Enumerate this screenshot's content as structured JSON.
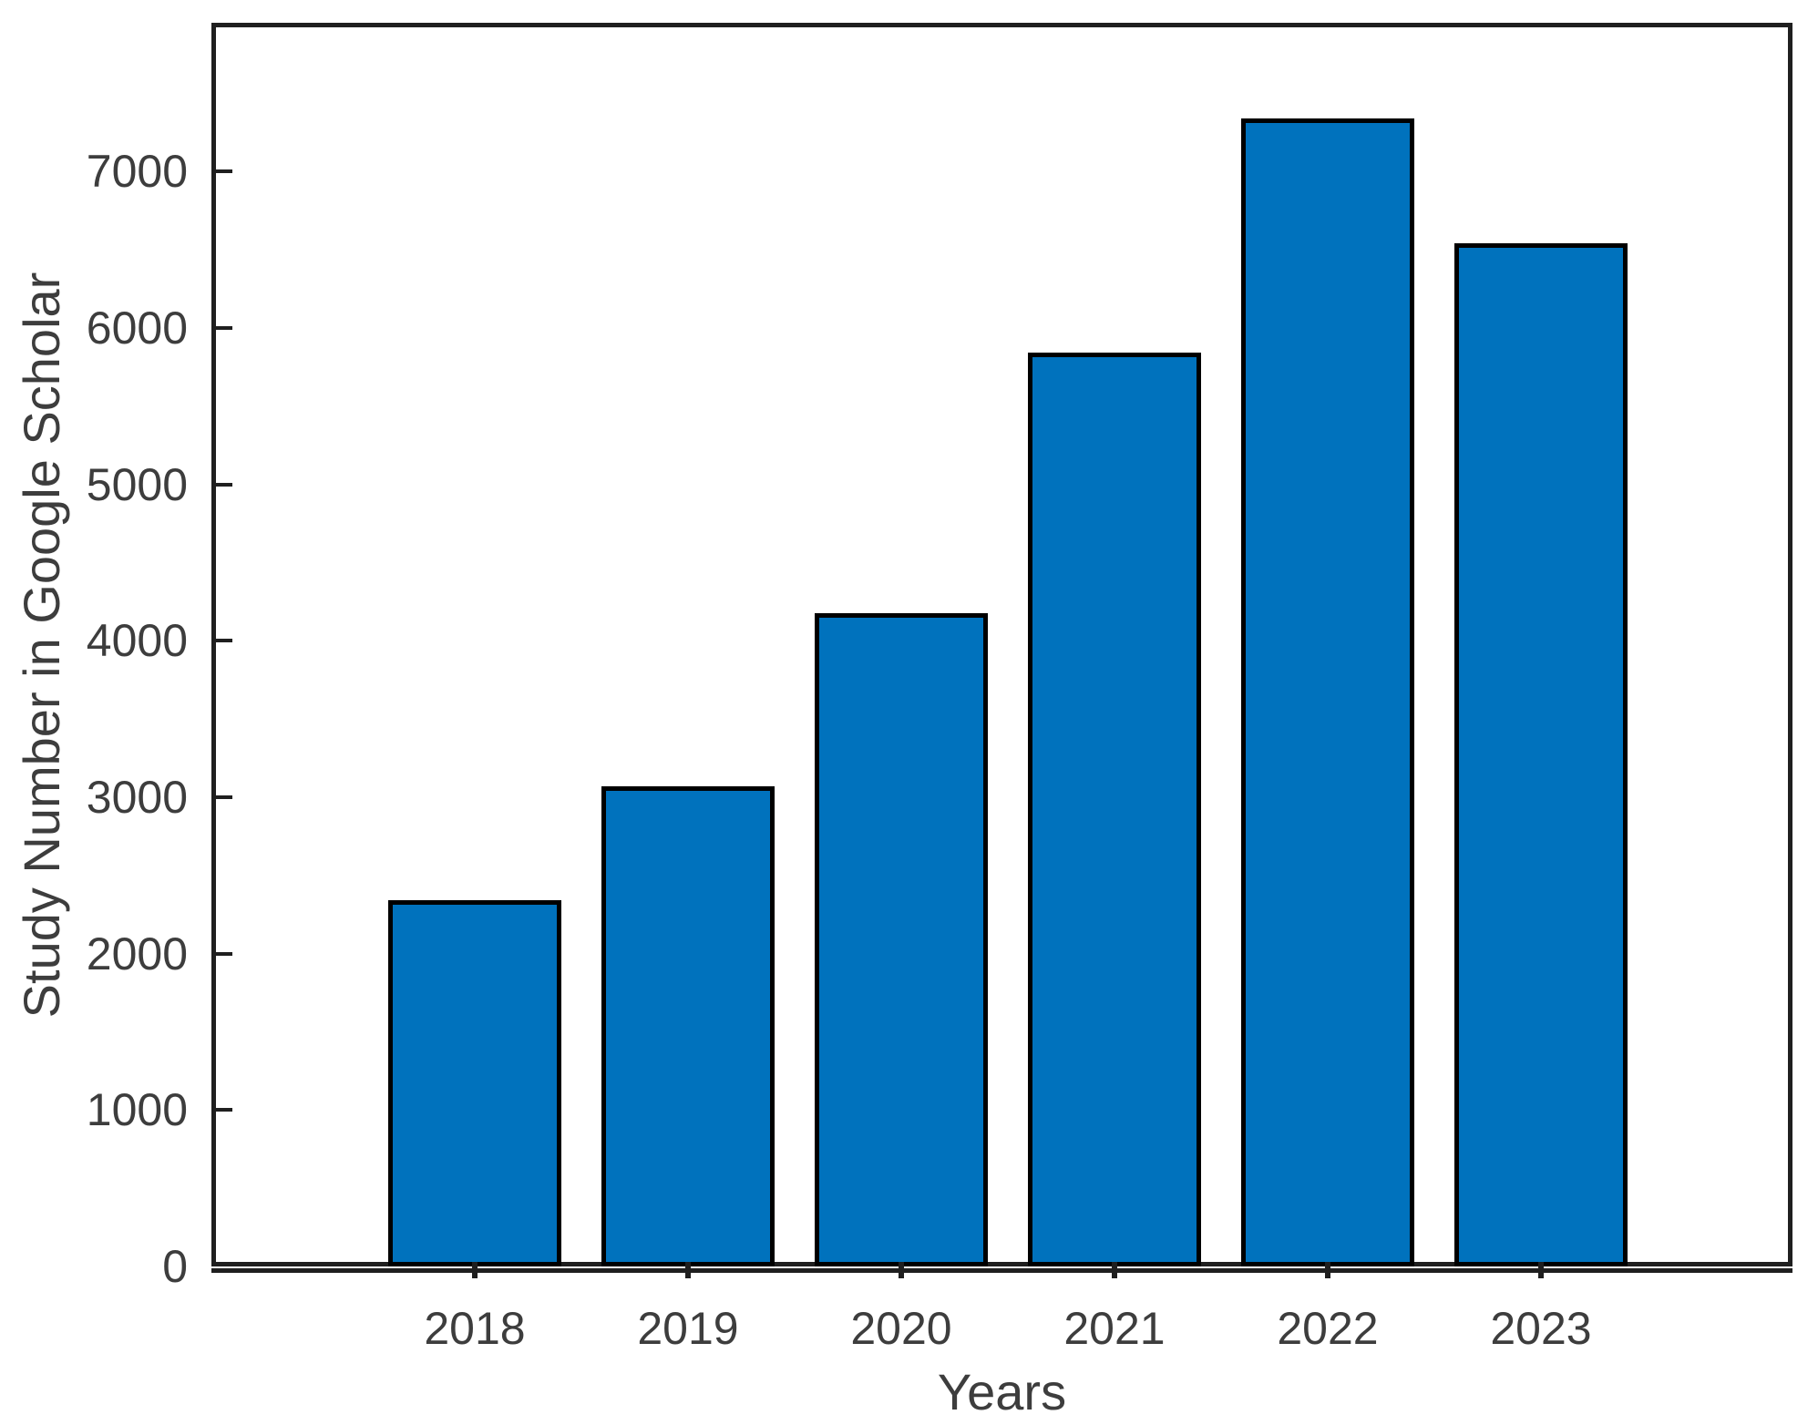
{
  "chart_data": {
    "type": "bar",
    "title": "",
    "xlabel": "Years",
    "ylabel": "Study Number in Google Scholar",
    "categories": [
      "2018",
      "2019",
      "2020",
      "2021",
      "2022",
      "2023"
    ],
    "values": [
      2340,
      3070,
      4175,
      5840,
      7340,
      6540
    ],
    "ylim": [
      0,
      7950
    ],
    "yticks": [
      0,
      1000,
      2000,
      3000,
      4000,
      5000,
      6000,
      7000
    ],
    "grid": false,
    "legend": "none",
    "tick_direction": "in",
    "bar_color": "#0072BD",
    "bar_edge_color": "#000000",
    "axis_line_color": "#1f1f1f",
    "label_color": "#3d3d3d"
  }
}
